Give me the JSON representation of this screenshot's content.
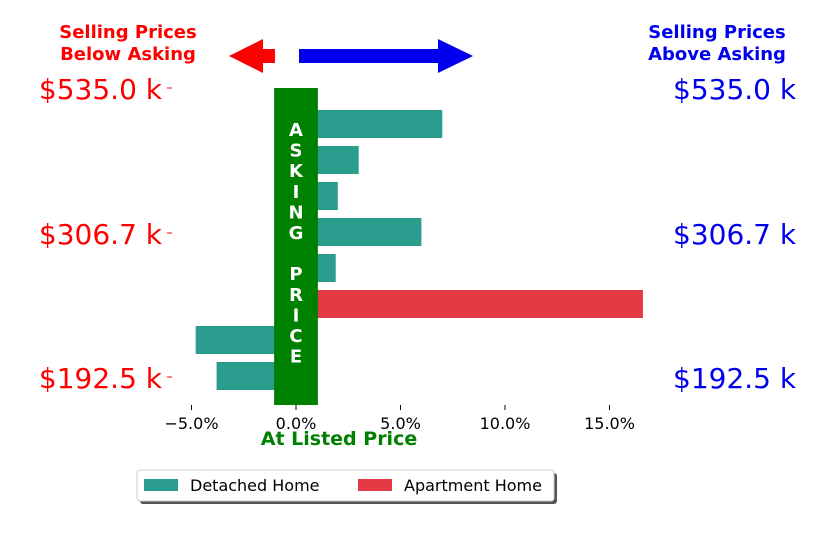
{
  "header": {
    "left": [
      "Selling Prices",
      "Below Asking"
    ],
    "right": [
      "Selling Prices",
      "Above Asking"
    ]
  },
  "colors": {
    "below": "#ff0000",
    "above": "#0000ee",
    "detached": "#2a9d8f",
    "apartment": "#e63946",
    "asking": "#008000"
  },
  "chart_data": {
    "type": "bar",
    "orientation": "horizontal",
    "series": [
      {
        "name": "Detached Home",
        "color": "#2a9d8f"
      },
      {
        "name": "Apartment Home",
        "color": "#e63946"
      }
    ],
    "bars": [
      {
        "series": "Detached Home",
        "value": 7.0
      },
      {
        "series": "Detached Home",
        "value": 3.0
      },
      {
        "series": "Detached Home",
        "value": 2.0
      },
      {
        "series": "Detached Home",
        "value": 6.0
      },
      {
        "series": "Detached Home",
        "value": 1.9
      },
      {
        "series": "Apartment Home",
        "value": 16.6
      },
      {
        "series": "Detached Home",
        "value": -4.8
      },
      {
        "series": "Detached Home",
        "value": -3.8
      }
    ],
    "xlim": [
      -5.5,
      16.6
    ],
    "xticks": [
      "−5.0%",
      "0.0%",
      "5.0%",
      "10.0%",
      "15.0%"
    ],
    "xtick_values": [
      -5,
      0,
      5,
      10,
      15
    ],
    "xlabel": "At Listed Price",
    "y_price_labels": [
      "$535.0 k",
      "$306.7 k",
      "$192.5 k"
    ],
    "asking_band_label": "ASKING PRICE",
    "asking_band_letters": [
      "A",
      "S",
      "K",
      "I",
      "N",
      "G",
      "",
      "P",
      "R",
      "I",
      "C",
      "E"
    ],
    "asking_band_range": [
      -1.0,
      1.0
    ],
    "legend_position": "bottom-center"
  }
}
